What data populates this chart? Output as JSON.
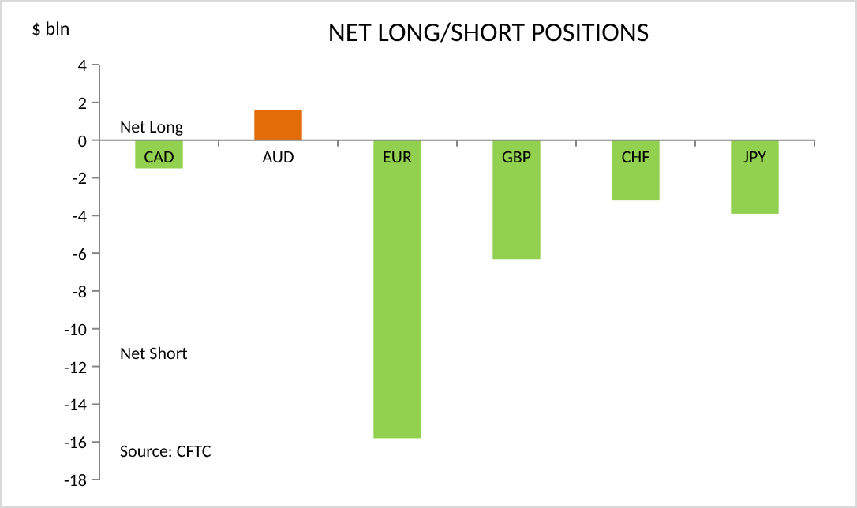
{
  "chart_data": {
    "type": "bar",
    "title": "NET LONG/SHORT POSITIONS",
    "ylabel": "$ bln",
    "categories": [
      "CAD",
      "AUD",
      "EUR",
      "GBP",
      "CHF",
      "JPY"
    ],
    "values": [
      -1.5,
      1.6,
      -15.8,
      -6.3,
      -3.2,
      -3.9
    ],
    "colors": [
      "#92d050",
      "#e36c09",
      "#92d050",
      "#92d050",
      "#92d050",
      "#92d050"
    ],
    "ylim": [
      -18,
      4
    ],
    "yticks": [
      4,
      2,
      0,
      -2,
      -4,
      -6,
      -8,
      -10,
      -12,
      -14,
      -16,
      -18
    ],
    "annotations": [
      "Net Long",
      "Net Short",
      "Source: CFTC"
    ]
  }
}
